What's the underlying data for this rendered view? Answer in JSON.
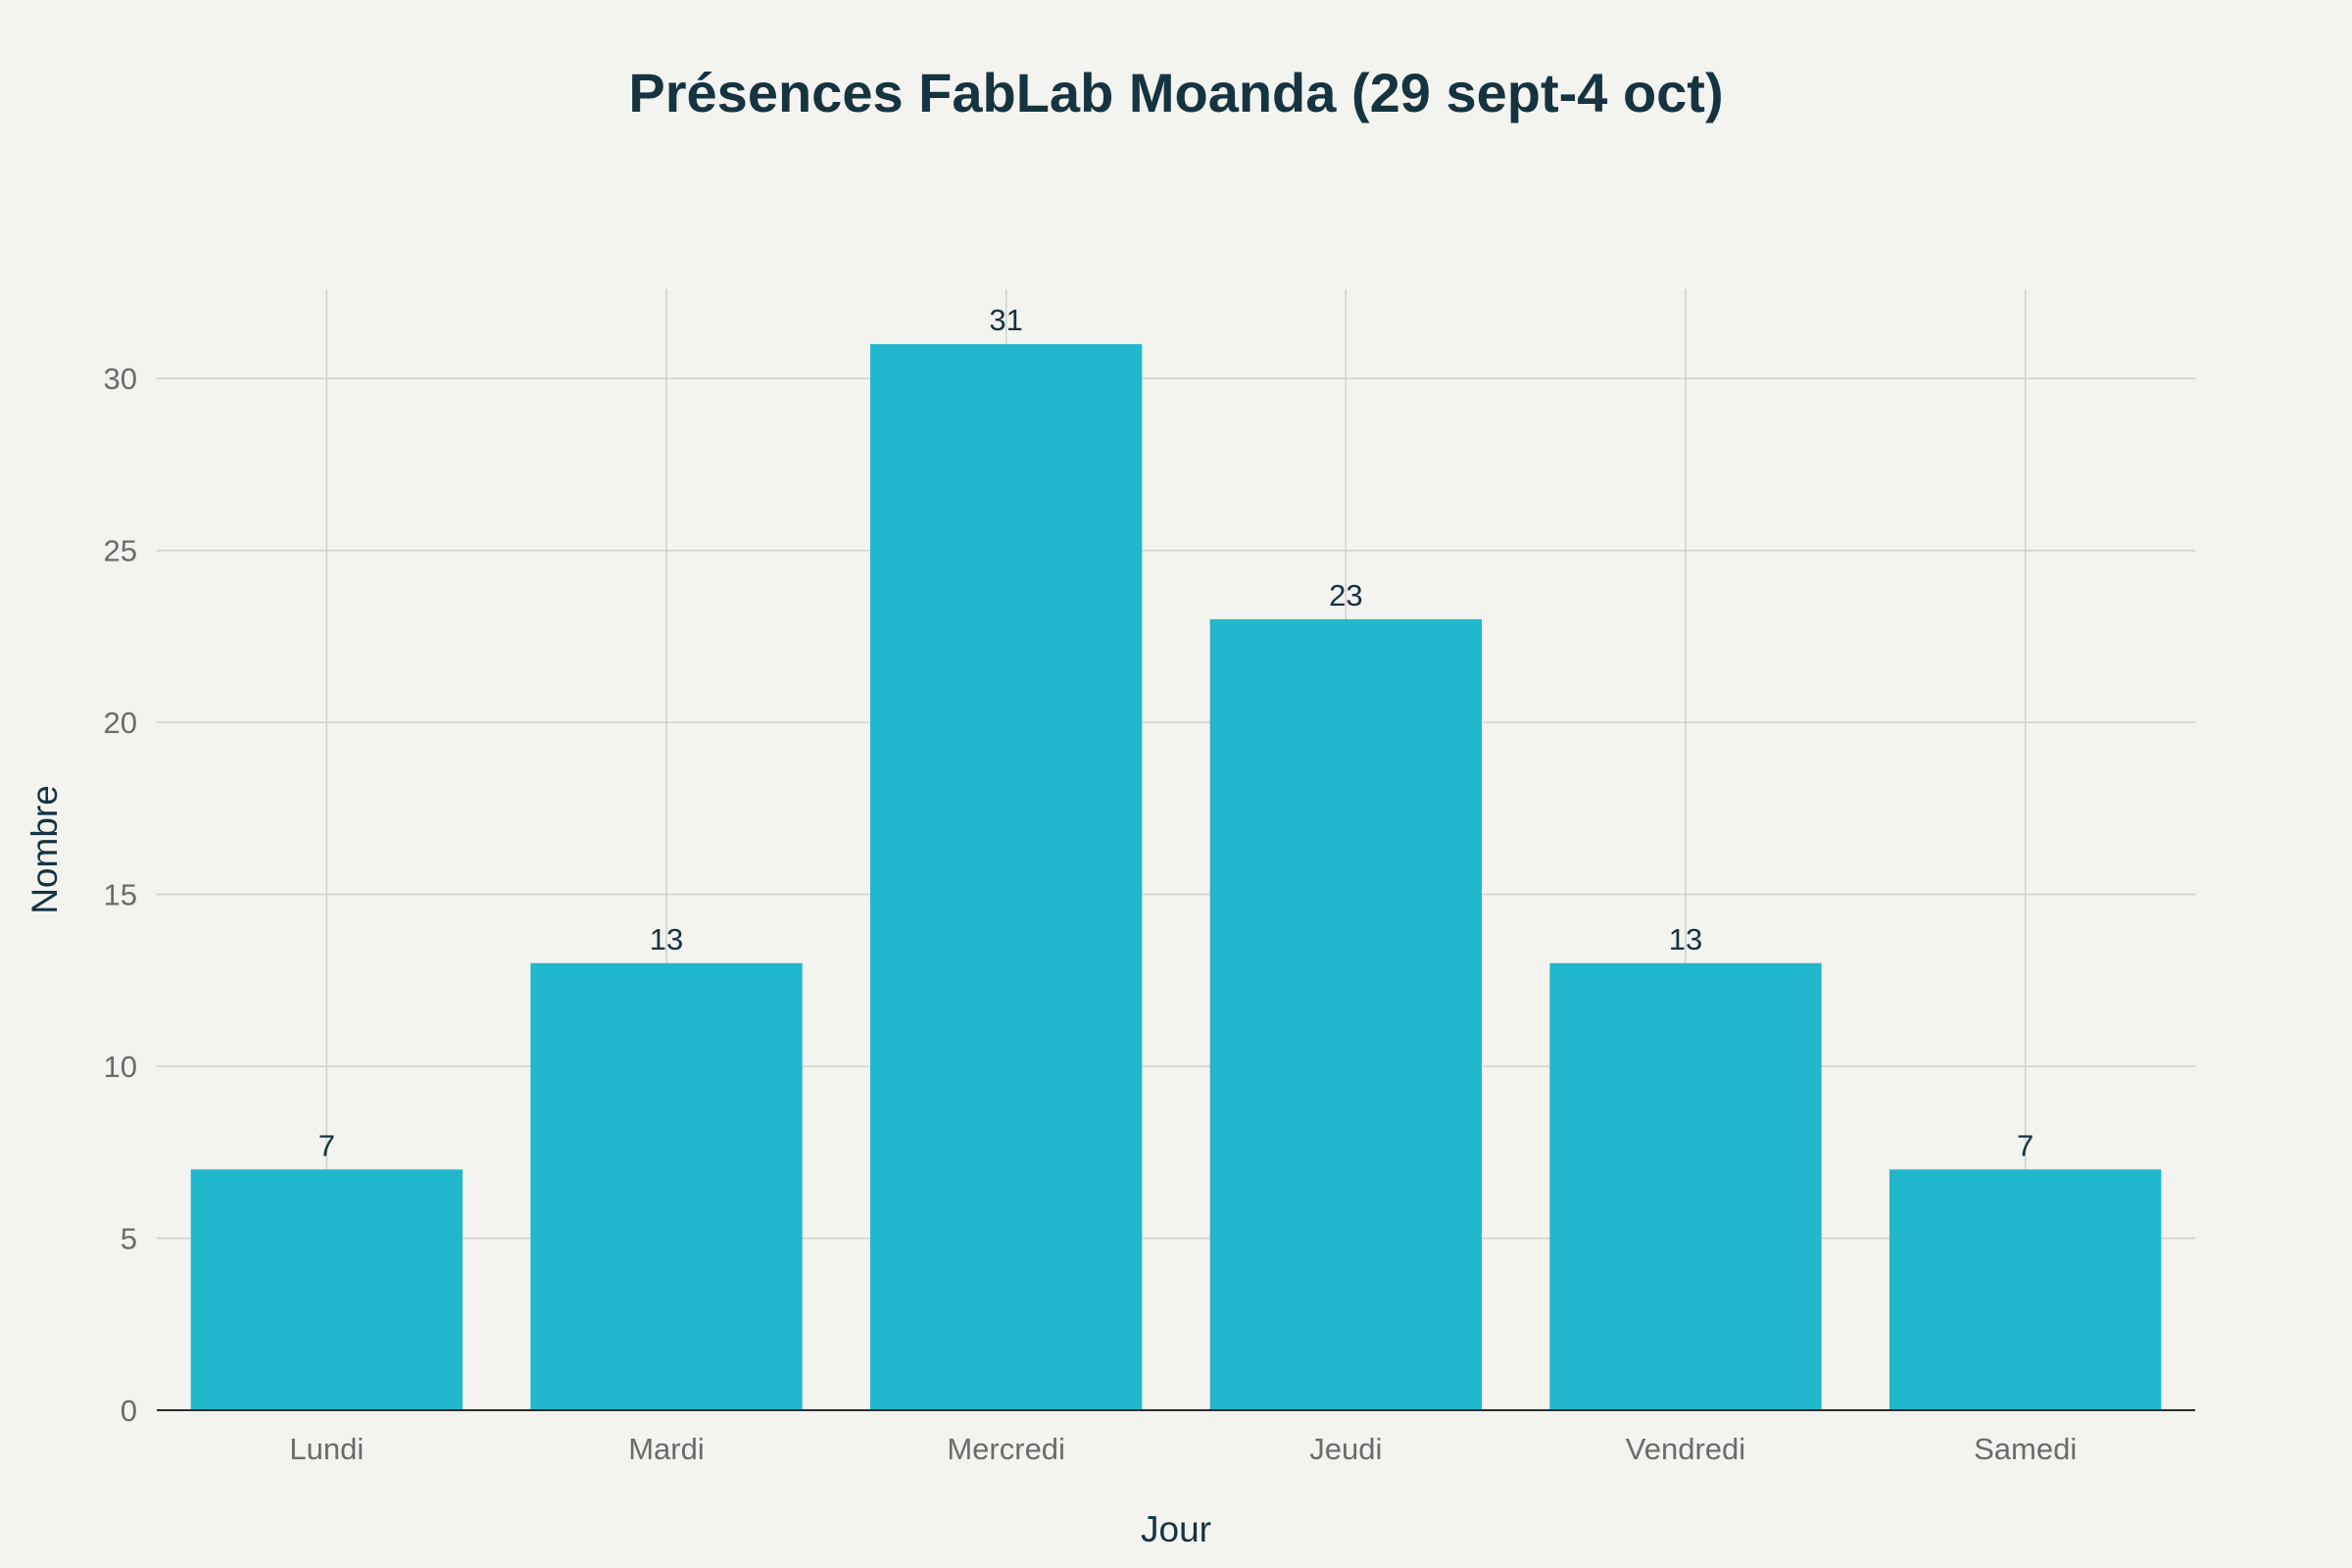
{
  "chart_data": {
    "type": "bar",
    "title": "Présences FabLab Moanda (29 sept-4 oct)",
    "xlabel": "Jour",
    "ylabel": "Nombre",
    "categories": [
      "Lundi",
      "Mardi",
      "Mercredi",
      "Jeudi",
      "Vendredi",
      "Samedi"
    ],
    "values": [
      7,
      13,
      31,
      23,
      13,
      7
    ],
    "data_labels": [
      "7",
      "13",
      "31",
      "23",
      "13",
      "7"
    ],
    "ylim": [
      0,
      32.6
    ],
    "yticks": [
      0,
      5,
      10,
      15,
      20,
      25,
      30
    ],
    "grid": true,
    "legend": "none",
    "colors": {
      "bar": "#21b7cc",
      "background": "#f3f3ef",
      "title": "#163340"
    }
  }
}
